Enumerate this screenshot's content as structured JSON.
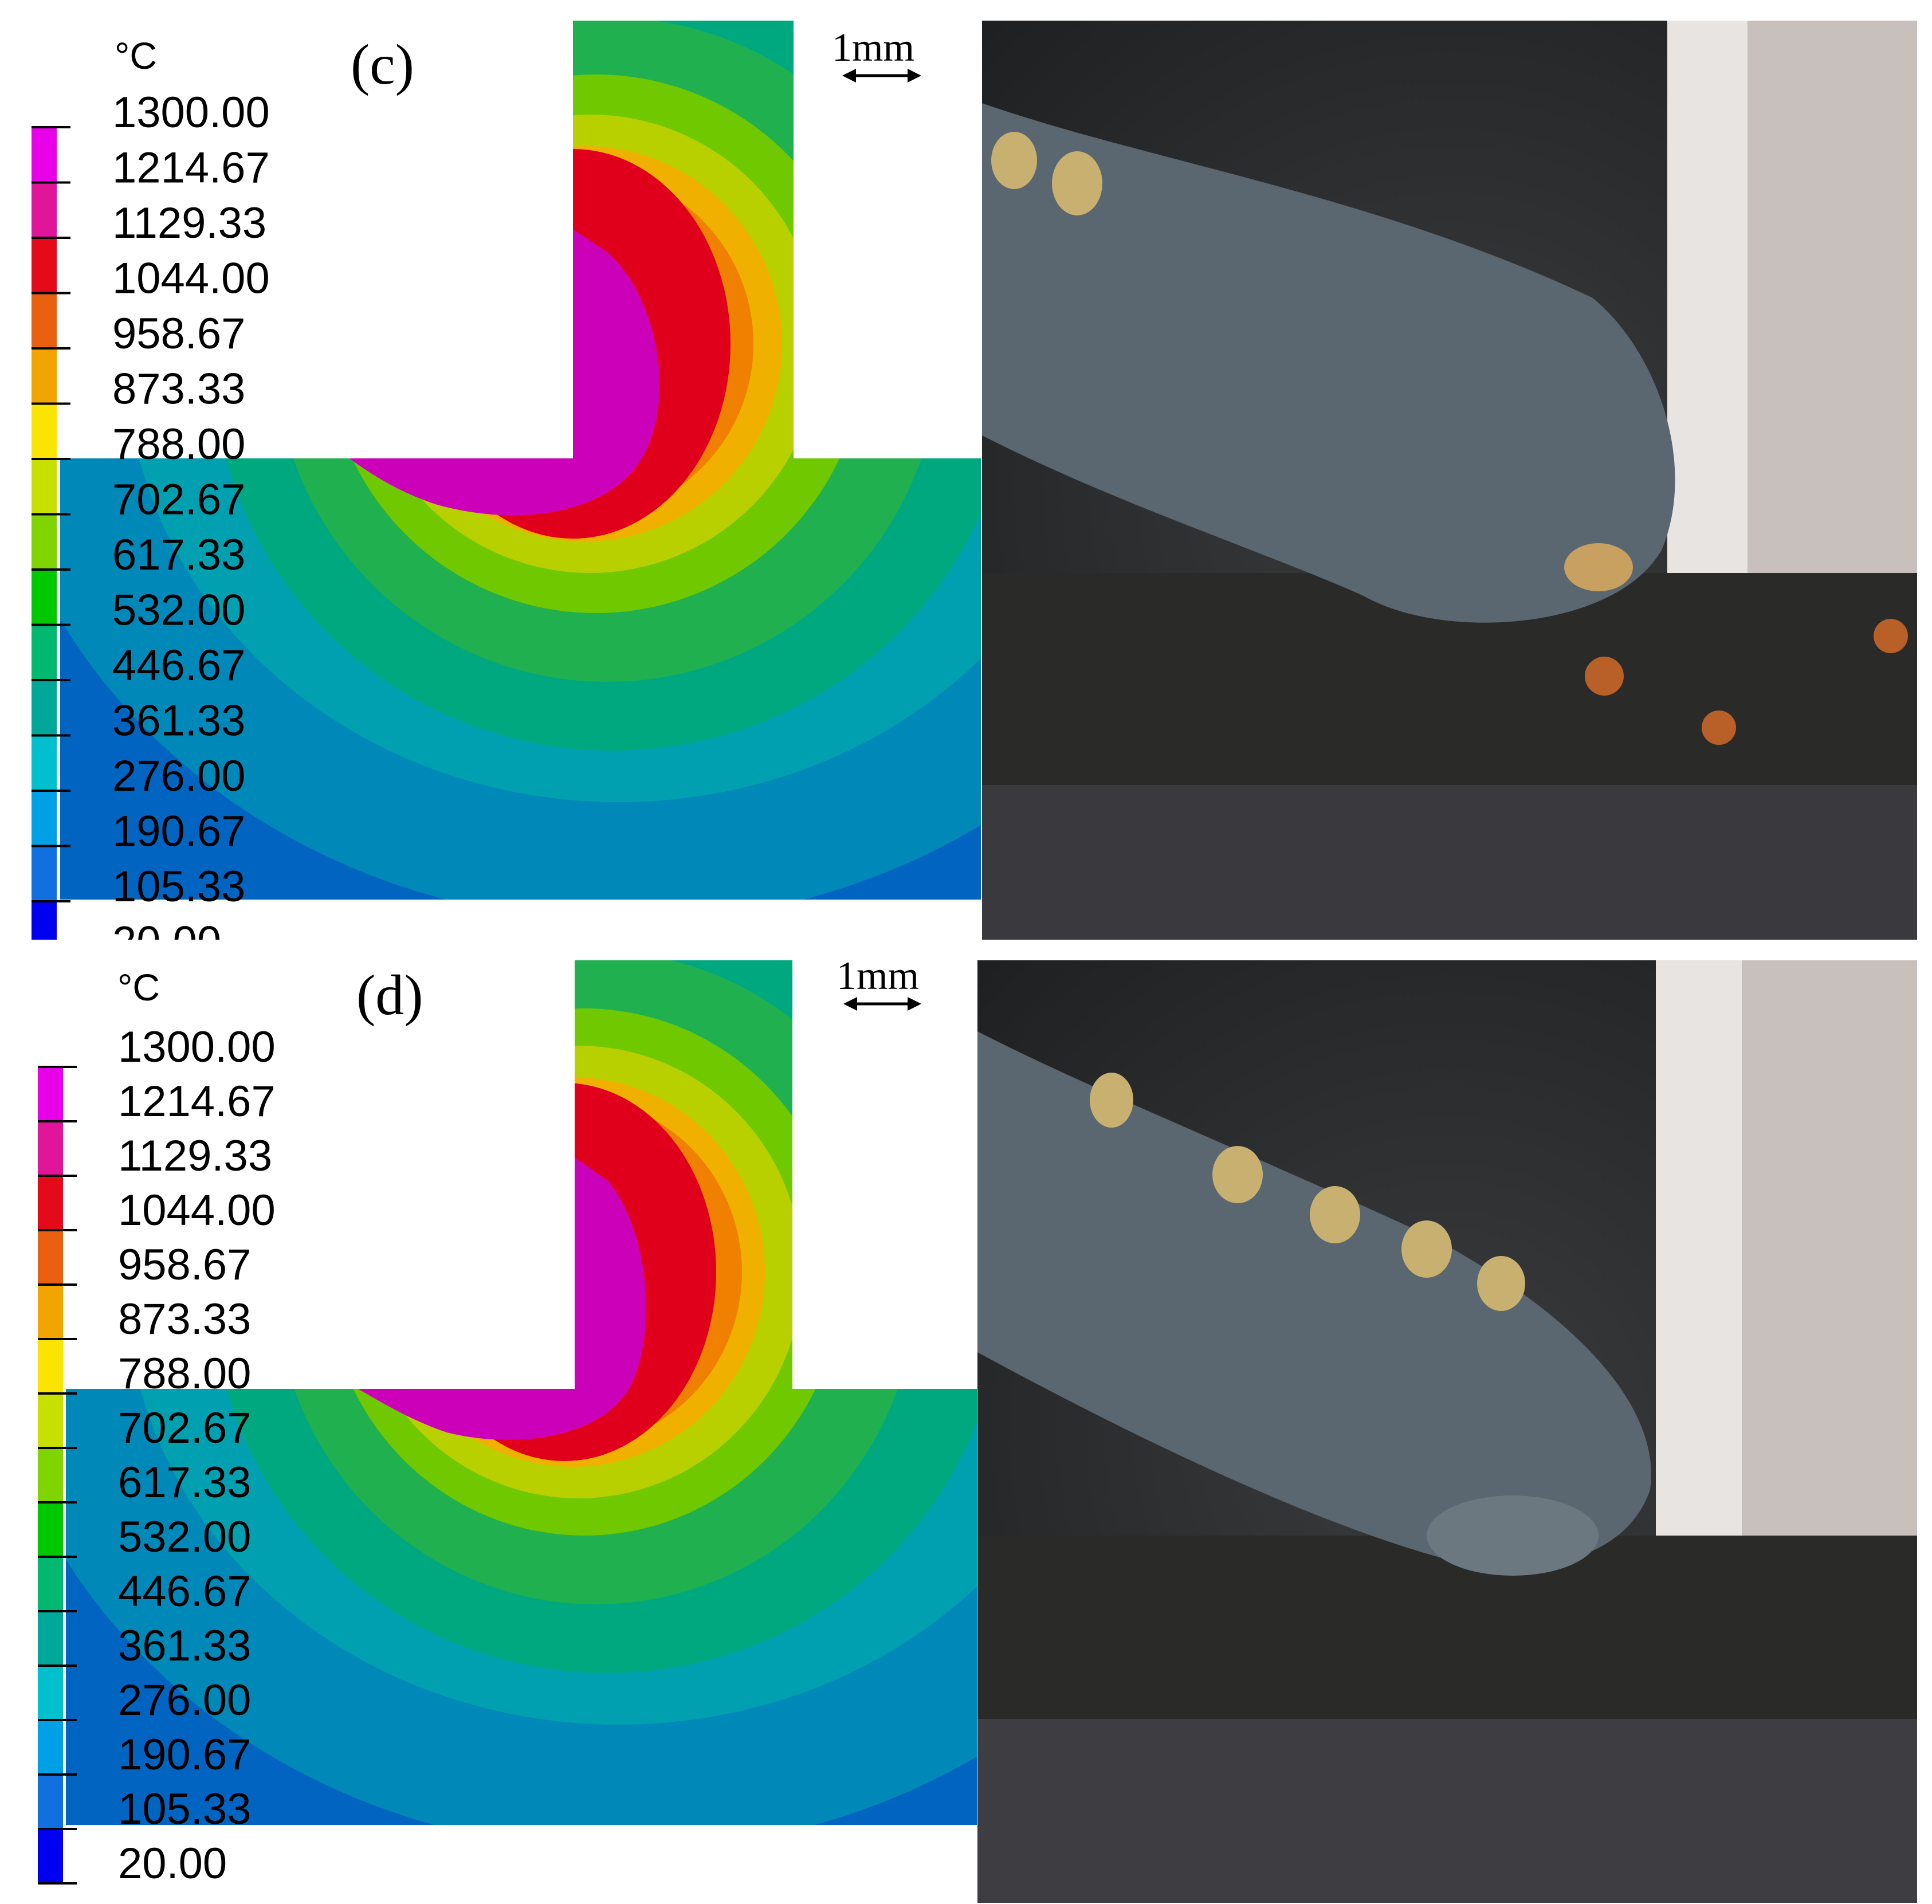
{
  "legend": {
    "unit": "°C",
    "values": [
      "1300.00",
      "1214.67",
      "1129.33",
      "1044.00",
      "958.67",
      "873.33",
      "788.00",
      "702.67",
      "617.33",
      "532.00",
      "446.67",
      "361.33",
      "276.00",
      "190.67",
      "105.33",
      "20.00"
    ],
    "colors": [
      "#e800e8",
      "#e0159a",
      "#e50a1a",
      "#e86010",
      "#f2a400",
      "#fbe400",
      "#c8e000",
      "#80d400",
      "#00c800",
      "#00b870",
      "#00a89a",
      "#00c0ce",
      "#00a0e6",
      "#1070e0",
      "#0000f0"
    ]
  },
  "scale_bar": {
    "label": "1mm"
  },
  "panels": [
    {
      "label": "(c)"
    },
    {
      "label": "(d)"
    }
  ],
  "contour_colors": {
    "magenta": "#cc00b8",
    "red": "#e0001c",
    "orange": "#f08000",
    "yellow_orange": "#f0b000",
    "yellow_green": "#b8d000",
    "green_light": "#70c800",
    "green": "#20b050",
    "teal_green": "#00a880",
    "teal": "#00a0b0",
    "blue_teal": "#0088b8",
    "blue": "#0064c0"
  }
}
